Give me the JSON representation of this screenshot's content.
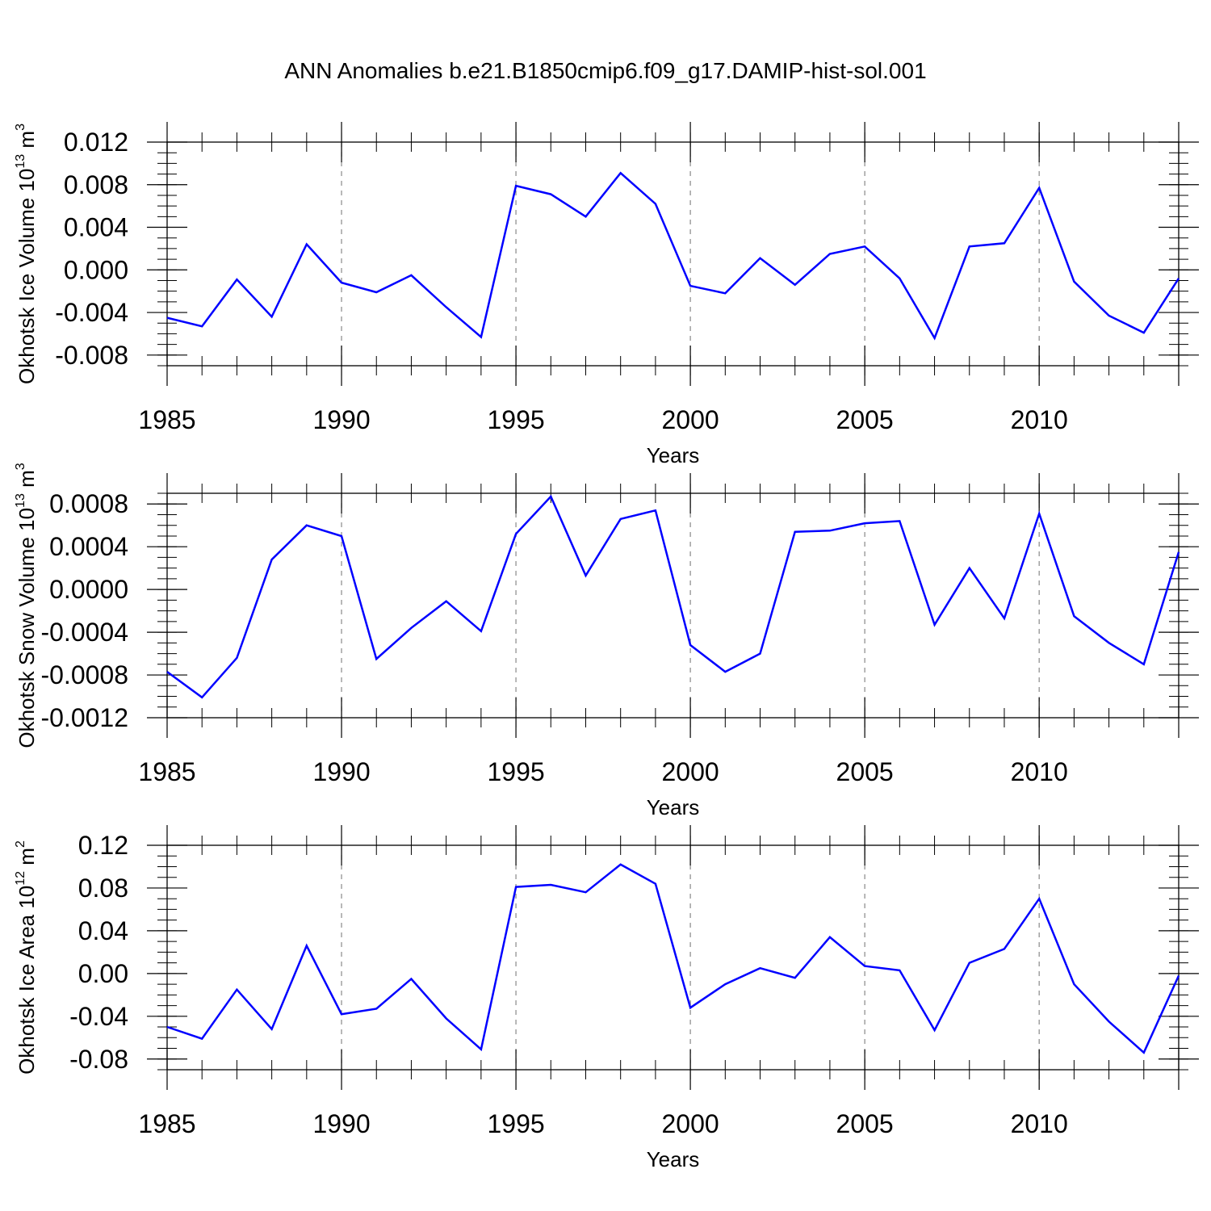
{
  "title": "ANN Anomalies b.e21.B1850cmip6.f09_g17.DAMIP-hist-sol.001",
  "colors": {
    "line": "#0000ff",
    "axis": "#000000",
    "grid": "#888888"
  },
  "chart_data": [
    {
      "type": "line",
      "ylabel": {
        "text": "Okhotsk Ice Volume 10",
        "exp": "13",
        "unit": " m",
        "unit_exp": "3"
      },
      "xlabel": "Years",
      "xlim": [
        1985,
        2014
      ],
      "ylim": [
        -0.009,
        0.012
      ],
      "yticks": [
        -0.008,
        -0.004,
        0.0,
        0.004,
        0.008,
        0.012
      ],
      "ytick_labels": [
        "-0.008",
        "-0.004",
        "0.000",
        "0.004",
        "0.008",
        "0.012"
      ],
      "yminor": 0.001,
      "xticks": [
        1985,
        1990,
        1995,
        2000,
        2005,
        2010
      ],
      "xtick_labels": [
        "1985",
        "1990",
        "1995",
        "2000",
        "2005",
        "2010"
      ],
      "grid_x": [
        1990,
        1995,
        2000,
        2005,
        2010
      ],
      "x": [
        1985,
        1986,
        1987,
        1988,
        1989,
        1990,
        1991,
        1992,
        1993,
        1994,
        1995,
        1996,
        1997,
        1998,
        1999,
        2000,
        2001,
        2002,
        2003,
        2004,
        2005,
        2006,
        2007,
        2008,
        2009,
        2010,
        2011,
        2012,
        2013,
        2014
      ],
      "y": [
        -0.0045,
        -0.0053,
        -0.0009,
        -0.0044,
        0.0024,
        -0.0012,
        -0.0021,
        -0.0005,
        -0.0035,
        -0.0063,
        0.0079,
        0.0071,
        0.005,
        0.0091,
        0.0062,
        -0.0015,
        -0.0022,
        0.0011,
        -0.0014,
        0.0015,
        0.0022,
        -0.0008,
        -0.0064,
        0.0022,
        0.0025,
        0.0077,
        -0.0011,
        -0.0043,
        -0.0059,
        -0.0008
      ]
    },
    {
      "type": "line",
      "ylabel": {
        "text": "Okhotsk Snow Volume 10",
        "exp": "13",
        "unit": " m",
        "unit_exp": "3"
      },
      "xlabel": "Years",
      "xlim": [
        1985,
        2014
      ],
      "ylim": [
        -0.0012,
        0.0009
      ],
      "yticks": [
        -0.0012,
        -0.0008,
        -0.0004,
        0.0,
        0.0004,
        0.0008
      ],
      "ytick_labels": [
        "-0.0012",
        "-0.0008",
        "-0.0004",
        "0.0000",
        "0.0004",
        "0.0008"
      ],
      "yminor": 0.0001,
      "xticks": [
        1985,
        1990,
        1995,
        2000,
        2005,
        2010
      ],
      "xtick_labels": [
        "1985",
        "1990",
        "1995",
        "2000",
        "2005",
        "2010"
      ],
      "grid_x": [
        1990,
        1995,
        2000,
        2005,
        2010
      ],
      "x": [
        1985,
        1986,
        1987,
        1988,
        1989,
        1990,
        1991,
        1992,
        1993,
        1994,
        1995,
        1996,
        1997,
        1998,
        1999,
        2000,
        2001,
        2002,
        2003,
        2004,
        2005,
        2006,
        2007,
        2008,
        2009,
        2010,
        2011,
        2012,
        2013,
        2014
      ],
      "y": [
        -0.00077,
        -0.00101,
        -0.00064,
        0.00028,
        0.0006,
        0.0005,
        -0.00065,
        -0.00036,
        -0.00011,
        -0.00039,
        0.00052,
        0.00087,
        0.00013,
        0.00066,
        0.00074,
        -0.00052,
        -0.00077,
        -0.0006,
        0.00054,
        0.00055,
        0.00062,
        0.00064,
        -0.00033,
        0.0002,
        -0.00027,
        0.00071,
        -0.00025,
        -0.0005,
        -0.0007,
        0.00035
      ]
    },
    {
      "type": "line",
      "ylabel": {
        "text": "Okhotsk Ice Area 10",
        "exp": "12",
        "unit": " m",
        "unit_exp": "2"
      },
      "xlabel": "Years",
      "xlim": [
        1985,
        2014
      ],
      "ylim": [
        -0.09,
        0.12
      ],
      "yticks": [
        -0.08,
        -0.04,
        0.0,
        0.04,
        0.08,
        0.12
      ],
      "ytick_labels": [
        "-0.08",
        "-0.04",
        "0.00",
        "0.04",
        "0.08",
        "0.12"
      ],
      "yminor": 0.01,
      "xticks": [
        1985,
        1990,
        1995,
        2000,
        2005,
        2010
      ],
      "xtick_labels": [
        "1985",
        "1990",
        "1995",
        "2000",
        "2005",
        "2010"
      ],
      "grid_x": [
        1990,
        1995,
        2000,
        2005,
        2010
      ],
      "x": [
        1985,
        1986,
        1987,
        1988,
        1989,
        1990,
        1991,
        1992,
        1993,
        1994,
        1995,
        1996,
        1997,
        1998,
        1999,
        2000,
        2001,
        2002,
        2003,
        2004,
        2005,
        2006,
        2007,
        2008,
        2009,
        2010,
        2011,
        2012,
        2013,
        2014
      ],
      "y": [
        -0.05,
        -0.061,
        -0.015,
        -0.052,
        0.026,
        -0.038,
        -0.033,
        -0.005,
        -0.042,
        -0.071,
        0.081,
        0.083,
        0.076,
        0.102,
        0.084,
        -0.032,
        -0.01,
        0.005,
        -0.004,
        0.034,
        0.007,
        0.003,
        -0.053,
        0.01,
        0.023,
        0.07,
        -0.01,
        -0.045,
        -0.074,
        -0.002
      ]
    }
  ]
}
